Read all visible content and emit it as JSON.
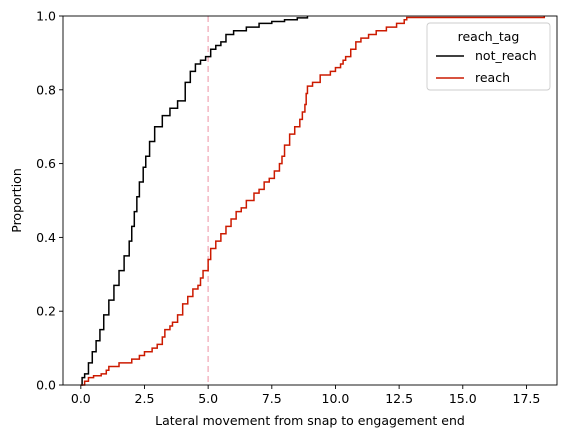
{
  "chart_data": {
    "type": "line",
    "subtype": "ecdf",
    "title": "",
    "xlabel": "Lateral movement from snap to engagement end",
    "ylabel": "Proportion",
    "xlim": [
      -0.7,
      18.7
    ],
    "ylim": [
      0.0,
      1.0
    ],
    "x_ticks": [
      0.0,
      2.5,
      5.0,
      7.5,
      10.0,
      12.5,
      15.0,
      17.5
    ],
    "x_tick_labels": [
      "0.0",
      "2.5",
      "5.0",
      "7.5",
      "10.0",
      "12.5",
      "15.0",
      "17.5"
    ],
    "y_ticks": [
      0.0,
      0.2,
      0.4,
      0.6,
      0.8,
      1.0
    ],
    "y_tick_labels": [
      "0.0",
      "0.2",
      "0.4",
      "0.6",
      "0.8",
      "1.0"
    ],
    "grid": false,
    "legend": {
      "title": "reach_tag",
      "placement": "top-right"
    },
    "reference_line": {
      "orientation": "vertical",
      "x": 5.0,
      "style": "dashed",
      "color": "#f4b6c2"
    },
    "series": [
      {
        "name": "not_reach",
        "color": "#000000",
        "points": [
          [
            0.0,
            0.0
          ],
          [
            0.05,
            0.02
          ],
          [
            0.15,
            0.03
          ],
          [
            0.3,
            0.06
          ],
          [
            0.45,
            0.09
          ],
          [
            0.6,
            0.12
          ],
          [
            0.75,
            0.15
          ],
          [
            0.9,
            0.19
          ],
          [
            1.1,
            0.23
          ],
          [
            1.3,
            0.27
          ],
          [
            1.5,
            0.31
          ],
          [
            1.7,
            0.35
          ],
          [
            1.9,
            0.39
          ],
          [
            2.0,
            0.43
          ],
          [
            2.1,
            0.47
          ],
          [
            2.2,
            0.51
          ],
          [
            2.3,
            0.55
          ],
          [
            2.45,
            0.59
          ],
          [
            2.55,
            0.62
          ],
          [
            2.7,
            0.66
          ],
          [
            2.9,
            0.7
          ],
          [
            3.2,
            0.73
          ],
          [
            3.5,
            0.75
          ],
          [
            3.8,
            0.77
          ],
          [
            4.1,
            0.82
          ],
          [
            4.3,
            0.85
          ],
          [
            4.5,
            0.87
          ],
          [
            4.7,
            0.88
          ],
          [
            4.9,
            0.89
          ],
          [
            5.1,
            0.91
          ],
          [
            5.3,
            0.92
          ],
          [
            5.5,
            0.93
          ],
          [
            5.7,
            0.95
          ],
          [
            6.0,
            0.96
          ],
          [
            6.5,
            0.97
          ],
          [
            7.0,
            0.98
          ],
          [
            7.5,
            0.985
          ],
          [
            8.0,
            0.99
          ],
          [
            8.5,
            0.995
          ],
          [
            8.9,
            1.0
          ]
        ]
      },
      {
        "name": "reach",
        "color": "#cc1a00",
        "points": [
          [
            0.0,
            0.0
          ],
          [
            0.15,
            0.01
          ],
          [
            0.3,
            0.02
          ],
          [
            0.5,
            0.025
          ],
          [
            0.8,
            0.03
          ],
          [
            1.0,
            0.04
          ],
          [
            1.1,
            0.05
          ],
          [
            1.5,
            0.06
          ],
          [
            1.8,
            0.06
          ],
          [
            2.0,
            0.07
          ],
          [
            2.3,
            0.08
          ],
          [
            2.5,
            0.09
          ],
          [
            2.8,
            0.1
          ],
          [
            3.0,
            0.11
          ],
          [
            3.2,
            0.13
          ],
          [
            3.3,
            0.15
          ],
          [
            3.5,
            0.16
          ],
          [
            3.6,
            0.17
          ],
          [
            3.8,
            0.19
          ],
          [
            4.0,
            0.22
          ],
          [
            4.2,
            0.24
          ],
          [
            4.4,
            0.26
          ],
          [
            4.6,
            0.27
          ],
          [
            4.7,
            0.29
          ],
          [
            4.8,
            0.31
          ],
          [
            5.0,
            0.34
          ],
          [
            5.1,
            0.37
          ],
          [
            5.3,
            0.39
          ],
          [
            5.5,
            0.41
          ],
          [
            5.7,
            0.43
          ],
          [
            5.9,
            0.45
          ],
          [
            6.1,
            0.47
          ],
          [
            6.3,
            0.48
          ],
          [
            6.5,
            0.5
          ],
          [
            6.8,
            0.52
          ],
          [
            7.0,
            0.53
          ],
          [
            7.2,
            0.55
          ],
          [
            7.4,
            0.56
          ],
          [
            7.6,
            0.58
          ],
          [
            7.8,
            0.6
          ],
          [
            7.9,
            0.62
          ],
          [
            8.0,
            0.65
          ],
          [
            8.2,
            0.68
          ],
          [
            8.4,
            0.7
          ],
          [
            8.6,
            0.72
          ],
          [
            8.7,
            0.74
          ],
          [
            8.8,
            0.76
          ],
          [
            8.85,
            0.79
          ],
          [
            8.9,
            0.81
          ],
          [
            9.1,
            0.82
          ],
          [
            9.4,
            0.84
          ],
          [
            9.8,
            0.85
          ],
          [
            10.0,
            0.86
          ],
          [
            10.2,
            0.87
          ],
          [
            10.3,
            0.88
          ],
          [
            10.4,
            0.89
          ],
          [
            10.6,
            0.91
          ],
          [
            10.8,
            0.93
          ],
          [
            11.0,
            0.94
          ],
          [
            11.3,
            0.95
          ],
          [
            11.6,
            0.96
          ],
          [
            12.0,
            0.97
          ],
          [
            12.4,
            0.98
          ],
          [
            12.7,
            0.99
          ],
          [
            12.8,
            0.996
          ],
          [
            18.2,
            1.0
          ]
        ]
      }
    ]
  }
}
